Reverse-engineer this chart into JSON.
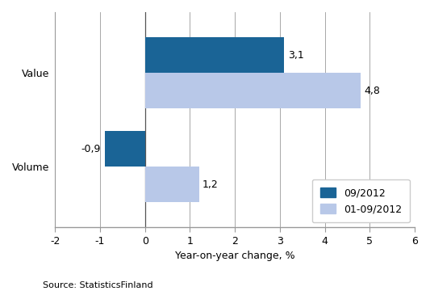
{
  "categories": [
    "Value",
    "Volume"
  ],
  "series": [
    {
      "label": "09/2012",
      "values": [
        3.1,
        -0.9
      ],
      "color": "#1a6496"
    },
    {
      "label": "01-09/2012",
      "values": [
        4.8,
        1.2
      ],
      "color": "#b8c8e8"
    }
  ],
  "xlim": [
    -2,
    6
  ],
  "xticks": [
    -2,
    -1,
    0,
    1,
    2,
    3,
    4,
    5,
    6
  ],
  "xlabel": "Year-on-year change, %",
  "source": "Source: StatisticsFinland",
  "bar_height": 0.38,
  "background_color": "#ffffff",
  "grid_color": "#999999",
  "label_fontsize": 9,
  "tick_fontsize": 9,
  "annotation_fontsize": 9,
  "source_fontsize": 8
}
